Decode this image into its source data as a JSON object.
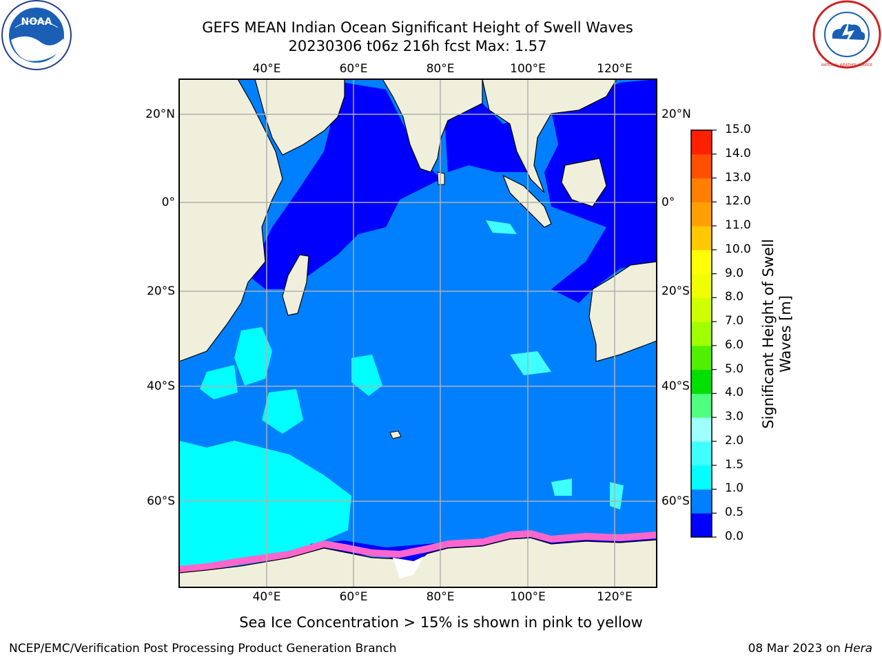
{
  "title_line1": "GEFS MEAN Indian Ocean Significant Height of Swell Waves",
  "title_line2": "20230306 t06z 216h fcst   Max: 1.57",
  "logos": {
    "left": {
      "text": "NOAA",
      "icon": "noaa-logo"
    },
    "right": {
      "text": "NATIONAL WEATHER SERVICE",
      "icon": "nws-logo"
    }
  },
  "map": {
    "lon_ticks": [
      "40°E",
      "60°E",
      "80°E",
      "100°E",
      "120°E"
    ],
    "lat_ticks": [
      "20°N",
      "0°",
      "20°S",
      "40°S",
      "60°S"
    ],
    "lon_range": [
      20,
      130
    ],
    "lat_range": [
      -73,
      28
    ],
    "colors": {
      "land": "#efefdc",
      "ocean_0_05": "#0000ff",
      "ocean_05_1": "#0080ff",
      "ocean_1_15": "#00ffff",
      "ocean_15_2": "#40ffff",
      "grid": "#b0b0b0",
      "sea_ice": "#ff66cc"
    }
  },
  "colorbar": {
    "levels": [
      "0.0",
      "0.5",
      "1.0",
      "1.5",
      "2.0",
      "3.0",
      "4.0",
      "5.0",
      "6.0",
      "7.0",
      "8.0",
      "9.0",
      "10.0",
      "11.0",
      "12.0",
      "13.0",
      "14.0",
      "15.0"
    ],
    "colors": [
      "#0000ff",
      "#0080ff",
      "#00ffff",
      "#40ffff",
      "#a0ffff",
      "#50ff80",
      "#00e000",
      "#50f000",
      "#a0ff00",
      "#d0ff00",
      "#f0ff00",
      "#ffff00",
      "#ffc800",
      "#ffa000",
      "#ff8000",
      "#ff5000",
      "#ff2000"
    ],
    "label_line1": "Significant Height of Swell",
    "label_line2": "Waves [m]"
  },
  "footnote": "Sea Ice Concentration > 15% is shown in pink to yellow",
  "credit_left": "NCEP/EMC/Verification Post Processing Product Generation Branch",
  "credit_right_prefix": "08 Mar 2023 on ",
  "credit_right_host": "Hera"
}
